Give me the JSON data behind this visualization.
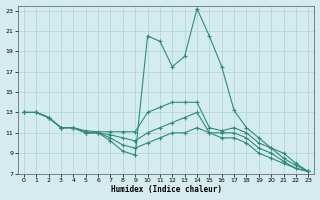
{
  "xlabel": "Humidex (Indice chaleur)",
  "background_color": "#d4ecee",
  "line_color": "#2e8b7a",
  "grid_color": "#b0d4d8",
  "xlim": [
    -0.5,
    23.5
  ],
  "ylim": [
    7,
    23.5
  ],
  "xticks": [
    0,
    1,
    2,
    3,
    4,
    5,
    6,
    7,
    8,
    9,
    10,
    11,
    12,
    13,
    14,
    15,
    16,
    17,
    18,
    19,
    20,
    21,
    22,
    23
  ],
  "yticks": [
    7,
    9,
    11,
    13,
    15,
    17,
    19,
    21,
    23
  ],
  "line_upper_x": [
    0,
    1,
    2,
    3,
    4,
    5,
    6,
    7,
    8,
    9,
    10,
    11,
    12,
    13,
    14,
    15,
    16,
    17,
    18,
    19,
    20,
    21,
    22,
    23
  ],
  "line_upper_y": [
    13,
    13,
    12.5,
    11.5,
    11.5,
    11.2,
    11.1,
    11.1,
    11.1,
    11.1,
    13,
    13.5,
    14,
    14,
    14,
    11.5,
    11.2,
    11.5,
    11,
    10,
    9.5,
    9,
    8,
    7.2
  ],
  "line_mid_x": [
    0,
    1,
    2,
    3,
    4,
    5,
    6,
    7,
    8,
    9,
    10,
    11,
    12,
    13,
    14,
    15,
    16,
    17,
    18,
    19,
    20,
    21,
    22,
    23
  ],
  "line_mid_y": [
    13,
    13,
    12.5,
    11.5,
    11.5,
    11,
    11,
    10.8,
    10.5,
    10.2,
    11,
    11.5,
    12,
    12.5,
    13,
    11,
    11,
    11,
    10.5,
    9.5,
    9,
    8.2,
    7.5,
    7.2
  ],
  "line_low_x": [
    0,
    1,
    2,
    3,
    4,
    5,
    6,
    7,
    8,
    9,
    10,
    11,
    12,
    13,
    14,
    15,
    16,
    17,
    18,
    19,
    20,
    21,
    22,
    23
  ],
  "line_low_y": [
    13,
    13,
    12.5,
    11.5,
    11.5,
    11,
    11,
    10.5,
    9.8,
    9.5,
    10,
    10.5,
    11,
    11,
    11.5,
    11,
    10.5,
    10.5,
    10,
    9,
    8.5,
    8,
    7.5,
    7.2
  ],
  "line_peak_x": [
    0,
    1,
    2,
    3,
    4,
    5,
    6,
    7,
    8,
    9,
    10,
    11,
    12,
    13,
    14,
    15,
    16,
    17,
    18,
    19,
    20,
    21,
    22,
    23
  ],
  "line_peak_y": [
    13,
    13,
    12.5,
    11.5,
    11.5,
    11,
    11,
    10.2,
    9.2,
    8.8,
    20.5,
    20,
    17.5,
    18.5,
    23.2,
    20.5,
    17.5,
    13.2,
    11.5,
    10.5,
    9.5,
    8.5,
    7.8,
    7.2
  ]
}
